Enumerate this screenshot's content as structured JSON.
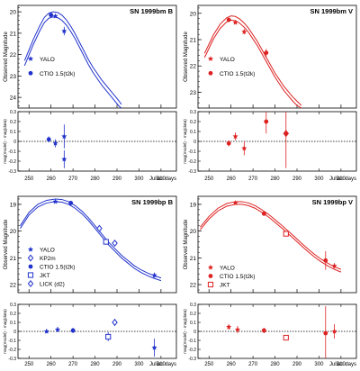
{
  "chart_data": [
    {
      "type": "line",
      "title": "SN 1999bm  B",
      "color": "#2233cc",
      "ylabel": "Observed Magnitude",
      "ylim": [
        24.5,
        19.7
      ],
      "yticks": [
        20,
        21,
        22,
        23,
        24
      ],
      "xlim": [
        245,
        317
      ],
      "legend": {
        "placement": "center-left",
        "entries": [
          {
            "marker": "star",
            "label": "YALO"
          },
          {
            "marker": "circle",
            "label": "CTIO 1.5(t2k)"
          }
        ]
      },
      "model": {
        "x": [
          248,
          252,
          255,
          257,
          259,
          261,
          263,
          265,
          267,
          269,
          271,
          273,
          275,
          277,
          279,
          281,
          283,
          285,
          287,
          289,
          291,
          292
        ],
        "y": [
          22.4,
          21.4,
          20.75,
          20.38,
          20.18,
          20.12,
          20.15,
          20.28,
          20.5,
          20.8,
          21.15,
          21.55,
          21.95,
          22.35,
          22.7,
          23.0,
          23.3,
          23.55,
          23.8,
          24.05,
          24.3,
          24.45
        ],
        "band": 0.12
      },
      "points": [
        {
          "marker": "circle",
          "x": 260,
          "y": 20.15,
          "err": 0.05
        },
        {
          "marker": "star",
          "x": 262,
          "y": 20.2,
          "err": 0.07
        },
        {
          "marker": "star",
          "x": 266,
          "y": 20.9,
          "err": 0.2
        }
      ],
      "residuals": {
        "ylabel": "mag(model) - mag(data)",
        "ylim": [
          -0.3,
          0.3
        ],
        "yticks": [
          -0.3,
          -0.2,
          -0.1,
          0,
          0.1,
          0.2,
          0.3
        ],
        "xticks": [
          250,
          260,
          270,
          280,
          290,
          300,
          310
        ],
        "xlabel": "Julian days",
        "points": [
          {
            "marker": "circle",
            "x": 259,
            "y": 0.02,
            "err": 0.03
          },
          {
            "marker": "star",
            "x": 262,
            "y": -0.02,
            "err": 0.04
          },
          {
            "marker": "star",
            "x": 266,
            "y": 0.05,
            "err": 0.12
          },
          {
            "marker": "star",
            "x": 266,
            "y": -0.18,
            "err": 0.09
          }
        ]
      }
    },
    {
      "type": "line",
      "title": "SN 1999bm  V",
      "color": "#dd2222",
      "ylabel": "Observed Magnitude",
      "ylim": [
        23.6,
        19.7
      ],
      "yticks": [
        20,
        21,
        22,
        23
      ],
      "xlim": [
        245,
        317
      ],
      "legend": {
        "placement": "center-left",
        "entries": [
          {
            "marker": "star",
            "label": "YALO"
          },
          {
            "marker": "circle",
            "label": "CTIO 1.5(t2k)"
          }
        ]
      },
      "model": {
        "x": [
          248,
          252,
          255,
          258,
          260,
          262,
          264,
          266,
          268,
          270,
          272,
          274,
          276,
          278,
          280,
          282,
          284,
          286,
          288,
          290,
          292
        ],
        "y": [
          21.6,
          20.9,
          20.5,
          20.25,
          20.18,
          20.2,
          20.3,
          20.45,
          20.65,
          20.9,
          21.15,
          21.45,
          21.75,
          22.05,
          22.35,
          22.6,
          22.85,
          23.05,
          23.25,
          23.42,
          23.58
        ],
        "band": 0.08
      },
      "points": [
        {
          "marker": "circle",
          "x": 259,
          "y": 20.25,
          "err": 0.04
        },
        {
          "marker": "star",
          "x": 262,
          "y": 20.35,
          "err": 0.05
        },
        {
          "marker": "star",
          "x": 266,
          "y": 20.7,
          "err": 0.1
        },
        {
          "marker": "circle",
          "x": 276,
          "y": 21.5,
          "err": 0.15
        }
      ],
      "residuals": {
        "ylabel": "mag(model) - mag(data)",
        "ylim": [
          -0.3,
          0.3
        ],
        "yticks": [
          -0.3,
          -0.2,
          -0.1,
          0,
          0.1,
          0.2,
          0.3
        ],
        "xticks": [
          250,
          260,
          270,
          280,
          290,
          300,
          310
        ],
        "xlabel": "Julian days",
        "points": [
          {
            "marker": "circle",
            "x": 259,
            "y": -0.02,
            "err": 0.03
          },
          {
            "marker": "star",
            "x": 262,
            "y": 0.05,
            "err": 0.04
          },
          {
            "marker": "star",
            "x": 266,
            "y": -0.07,
            "err": 0.07
          },
          {
            "marker": "circle",
            "x": 276,
            "y": 0.2,
            "err": 0.12
          },
          {
            "marker": "diamond",
            "x": 285,
            "y": 0.08,
            "err": 0.35
          }
        ]
      }
    },
    {
      "type": "line",
      "title": "SN 1999bp  B",
      "color": "#2233cc",
      "ylabel": "Observed Magnitude",
      "ylim": [
        22.3,
        18.7
      ],
      "yticks": [
        19,
        20,
        21,
        22
      ],
      "xlim": [
        245,
        317
      ],
      "legend": {
        "placement": "bottom-left",
        "entries": [
          {
            "marker": "star",
            "label": "YALO"
          },
          {
            "marker": "diamond-open",
            "label": "KP2m"
          },
          {
            "marker": "circle",
            "label": "CTIO 1.5(t2k)"
          },
          {
            "marker": "square-open",
            "label": "JKT"
          },
          {
            "marker": "diamond-open",
            "label": "LICK (d2)"
          }
        ]
      },
      "model": {
        "x": [
          246,
          250,
          254,
          258,
          262,
          265,
          268,
          271,
          274,
          277,
          280,
          283,
          286,
          289,
          292,
          295,
          298,
          301,
          304,
          307,
          310
        ],
        "y": [
          19.85,
          19.35,
          19.05,
          18.9,
          18.85,
          18.87,
          18.95,
          19.1,
          19.3,
          19.55,
          19.85,
          20.15,
          20.45,
          20.7,
          20.95,
          21.15,
          21.35,
          21.5,
          21.62,
          21.72,
          21.8
        ],
        "band": 0.05
      },
      "points": [
        {
          "marker": "star",
          "x": 262,
          "y": 18.9,
          "err": 0.03
        },
        {
          "marker": "circle",
          "x": 269,
          "y": 18.95,
          "err": 0.04
        },
        {
          "marker": "diamond-open",
          "x": 282,
          "y": 19.9,
          "err": 0.12
        },
        {
          "marker": "square-open",
          "x": 285,
          "y": 20.4,
          "err": 0.06
        },
        {
          "marker": "diamond-open",
          "x": 289,
          "y": 20.45,
          "err": 0.06
        },
        {
          "marker": "star",
          "x": 307,
          "y": 21.65,
          "err": 0.1
        }
      ],
      "residuals": {
        "ylabel": "mag(model) - mag(data)",
        "ylim": [
          -0.3,
          0.3
        ],
        "yticks": [
          -0.3,
          -0.2,
          -0.1,
          0,
          0.1,
          0.2,
          0.3
        ],
        "xticks": [
          250,
          260,
          270,
          280,
          290,
          300,
          310
        ],
        "xlabel": "Julian days",
        "points": [
          {
            "marker": "star",
            "x": 258,
            "y": 0.0,
            "err": 0.02
          },
          {
            "marker": "star",
            "x": 263,
            "y": 0.02,
            "err": 0.03
          },
          {
            "marker": "circle",
            "x": 270,
            "y": 0.01,
            "err": 0.03
          },
          {
            "marker": "square-open",
            "x": 286,
            "y": -0.06,
            "err": 0.05
          },
          {
            "marker": "diamond-open",
            "x": 289,
            "y": 0.1,
            "err": 0.04
          },
          {
            "marker": "star",
            "x": 307,
            "y": -0.18,
            "err": 0.1
          }
        ]
      }
    },
    {
      "type": "line",
      "title": "SN 1999bp  V",
      "color": "#dd2222",
      "ylabel": "Observed Magnitude",
      "ylim": [
        22.3,
        18.7
      ],
      "yticks": [
        19,
        20,
        21,
        22
      ],
      "xlim": [
        245,
        317
      ],
      "legend": {
        "placement": "bottom-left",
        "entries": [
          {
            "marker": "star",
            "label": "YALO"
          },
          {
            "marker": "circle",
            "label": "CTIO 1.5(t2k)"
          },
          {
            "marker": "square-open",
            "label": "JKT"
          }
        ]
      },
      "model": {
        "x": [
          246,
          250,
          254,
          258,
          262,
          265,
          268,
          271,
          274,
          277,
          280,
          283,
          286,
          289,
          292,
          295,
          298,
          301,
          304,
          307,
          310
        ],
        "y": [
          19.9,
          19.5,
          19.2,
          19.02,
          18.95,
          18.95,
          19.0,
          19.1,
          19.25,
          19.42,
          19.62,
          19.83,
          20.05,
          20.27,
          20.5,
          20.72,
          20.92,
          21.1,
          21.25,
          21.38,
          21.48
        ],
        "band": 0.05
      },
      "points": [
        {
          "marker": "star",
          "x": 262,
          "y": 18.95,
          "err": 0.05
        },
        {
          "marker": "circle",
          "x": 275,
          "y": 19.35,
          "err": 0.05
        },
        {
          "marker": "square-open",
          "x": 285,
          "y": 20.1,
          "err": 0.05
        },
        {
          "marker": "circle",
          "x": 303,
          "y": 21.1,
          "err": 0.35
        },
        {
          "marker": "star",
          "x": 307,
          "y": 21.3,
          "err": 0.1
        }
      ],
      "residuals": {
        "ylabel": "mag(model) - mag(data)",
        "ylim": [
          -0.3,
          0.3
        ],
        "yticks": [
          -0.3,
          -0.2,
          -0.1,
          0,
          0.1,
          0.2,
          0.3
        ],
        "xticks": [
          250,
          260,
          270,
          280,
          290,
          300,
          310
        ],
        "xlabel": "Julian days",
        "points": [
          {
            "marker": "star",
            "x": 259,
            "y": 0.05,
            "err": 0.03
          },
          {
            "marker": "star",
            "x": 263,
            "y": 0.02,
            "err": 0.04
          },
          {
            "marker": "circle",
            "x": 275,
            "y": 0.01,
            "err": 0.03
          },
          {
            "marker": "square-open",
            "x": 285,
            "y": -0.07,
            "err": 0.03
          },
          {
            "marker": "circle",
            "x": 303,
            "y": -0.02,
            "err": 0.3
          },
          {
            "marker": "star",
            "x": 307,
            "y": 0.0,
            "err": 0.08
          }
        ]
      }
    }
  ]
}
